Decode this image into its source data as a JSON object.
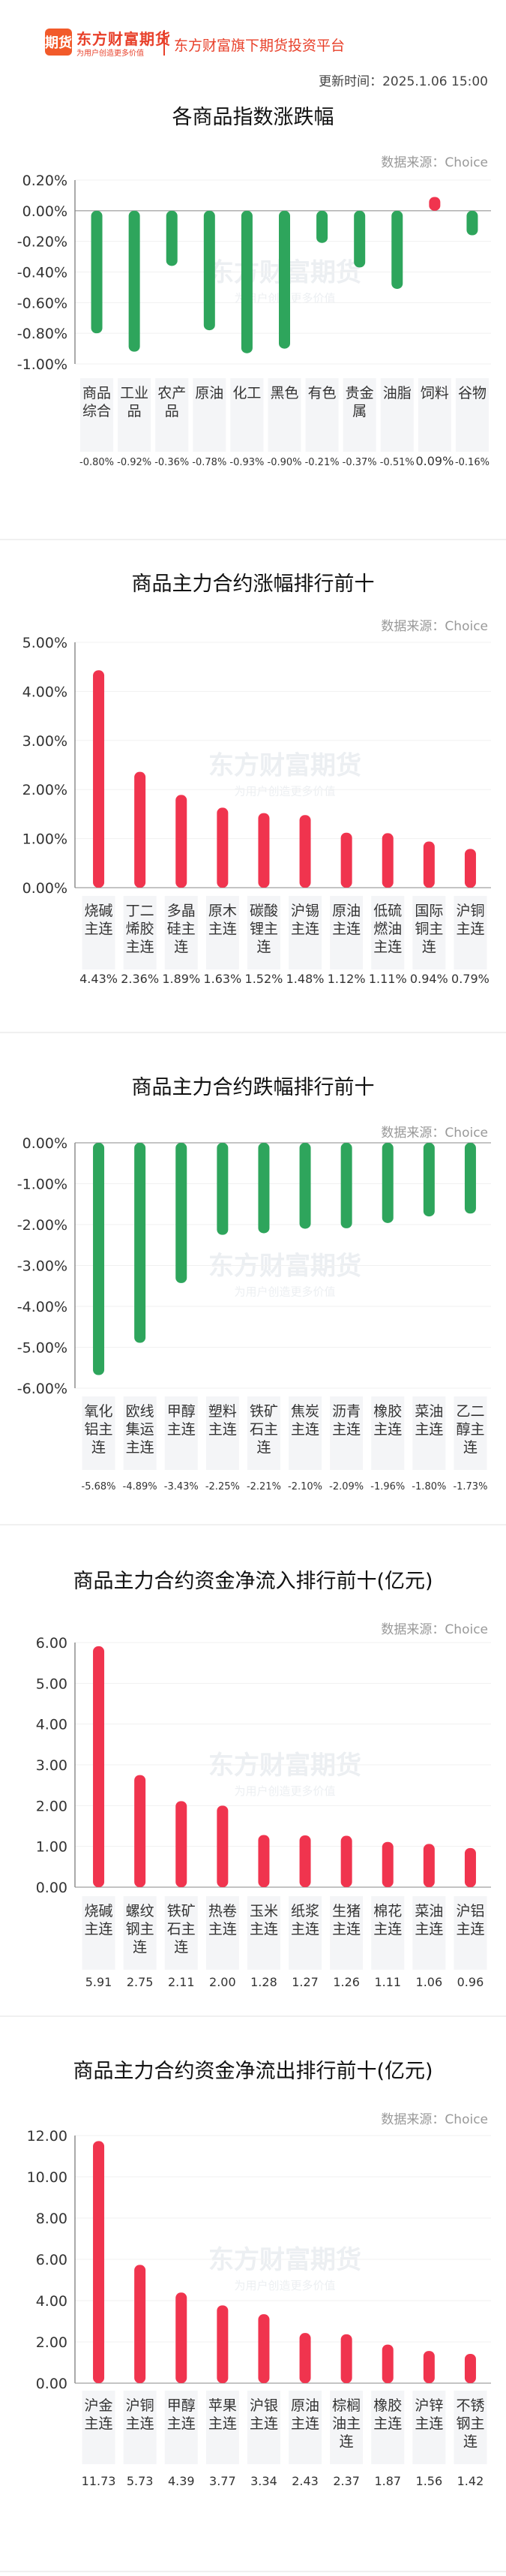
{
  "header": {
    "logo_mark": "期货",
    "logo_name": "东方财富期货",
    "logo_slogan": "为用户创造更多价值",
    "platform": "东方财富旗下期货投资平台",
    "updated": "更新时间：2025.1.06 15:00"
  },
  "colors": {
    "up": "#f0344e",
    "down": "#2ea55c"
  },
  "watermark": {
    "main": "东方财富期货",
    "sub": "为用户创造更多价值"
  },
  "chart_data": [
    {
      "type": "bar",
      "title": "各商品指数涨跌幅",
      "source": "数据来源：Choice",
      "ylim": [
        -1.0,
        0.2
      ],
      "yticks": [
        "0.20%",
        "0.00%",
        "-0.20%",
        "-0.40%",
        "-0.60%",
        "-0.80%",
        "-1.00%"
      ],
      "categories": [
        [
          "商品",
          "综合"
        ],
        [
          "工业",
          "品"
        ],
        [
          "农产",
          "品"
        ],
        [
          "原油"
        ],
        [
          "化工"
        ],
        [
          "黑色"
        ],
        [
          "有色"
        ],
        [
          "贵金",
          "属"
        ],
        [
          "油脂"
        ],
        [
          "饲料"
        ],
        [
          "谷物"
        ]
      ],
      "values": [
        -0.8,
        -0.92,
        -0.36,
        -0.78,
        -0.93,
        -0.9,
        -0.21,
        -0.37,
        -0.51,
        0.09,
        -0.16
      ],
      "labels": [
        "-0.80%",
        "-0.92%",
        "-0.36%",
        "-0.78%",
        "-0.93%",
        "-0.90%",
        "-0.21%",
        "-0.37%",
        "-0.51%",
        "0.09%",
        "-0.16%"
      ]
    },
    {
      "type": "bar",
      "title": "商品主力合约涨幅排行前十",
      "source": "数据来源：Choice",
      "ylim": [
        0,
        5.0
      ],
      "yticks": [
        "5.00%",
        "4.00%",
        "3.00%",
        "2.00%",
        "1.00%",
        "0.00%"
      ],
      "categories": [
        [
          "烧碱",
          "主连"
        ],
        [
          "丁二",
          "烯胶",
          "主连"
        ],
        [
          "多晶",
          "硅主",
          "连"
        ],
        [
          "原木",
          "主连"
        ],
        [
          "碳酸",
          "锂主",
          "连"
        ],
        [
          "沪锡",
          "主连"
        ],
        [
          "原油",
          "主连"
        ],
        [
          "低硫",
          "燃油",
          "主连"
        ],
        [
          "国际",
          "铜主",
          "连"
        ],
        [
          "沪铜",
          "主连"
        ]
      ],
      "values": [
        4.43,
        2.36,
        1.89,
        1.63,
        1.52,
        1.48,
        1.12,
        1.11,
        0.94,
        0.79
      ],
      "labels": [
        "4.43%",
        "2.36%",
        "1.89%",
        "1.63%",
        "1.52%",
        "1.48%",
        "1.12%",
        "1.11%",
        "0.94%",
        "0.79%"
      ]
    },
    {
      "type": "bar",
      "title": "商品主力合约跌幅排行前十",
      "source": "数据来源：Choice",
      "ylim": [
        -6.0,
        0
      ],
      "yticks": [
        "0.00%",
        "-1.00%",
        "-2.00%",
        "-3.00%",
        "-4.00%",
        "-5.00%",
        "-6.00%"
      ],
      "categories": [
        [
          "氧化",
          "铝主",
          "连"
        ],
        [
          "欧线",
          "集运",
          "主连"
        ],
        [
          "甲醇",
          "主连"
        ],
        [
          "塑料",
          "主连"
        ],
        [
          "铁矿",
          "石主",
          "连"
        ],
        [
          "焦炭",
          "主连"
        ],
        [
          "沥青",
          "主连"
        ],
        [
          "橡胶",
          "主连"
        ],
        [
          "菜油",
          "主连"
        ],
        [
          "乙二",
          "醇主",
          "连"
        ]
      ],
      "values": [
        -5.68,
        -4.89,
        -3.43,
        -2.25,
        -2.21,
        -2.1,
        -2.09,
        -1.96,
        -1.8,
        -1.73
      ],
      "labels": [
        "-5.68%",
        "-4.89%",
        "-3.43%",
        "-2.25%",
        "-2.21%",
        "-2.10%",
        "-2.09%",
        "-1.96%",
        "-1.80%",
        "-1.73%"
      ]
    },
    {
      "type": "bar",
      "title": "商品主力合约资金净流入排行前十(亿元)",
      "source": "数据来源：Choice",
      "ylim": [
        0,
        6.0
      ],
      "yticks": [
        "6.00",
        "5.00",
        "4.00",
        "3.00",
        "2.00",
        "1.00",
        "0.00"
      ],
      "categories": [
        [
          "烧碱",
          "主连"
        ],
        [
          "螺纹",
          "钢主",
          "连"
        ],
        [
          "铁矿",
          "石主",
          "连"
        ],
        [
          "热卷",
          "主连"
        ],
        [
          "玉米",
          "主连"
        ],
        [
          "纸浆",
          "主连"
        ],
        [
          "生猪",
          "主连"
        ],
        [
          "棉花",
          "主连"
        ],
        [
          "菜油",
          "主连"
        ],
        [
          "沪铝",
          "主连"
        ]
      ],
      "values": [
        5.91,
        2.75,
        2.11,
        2.0,
        1.28,
        1.27,
        1.26,
        1.11,
        1.06,
        0.96
      ],
      "labels": [
        "5.91",
        "2.75",
        "2.11",
        "2.00",
        "1.28",
        "1.27",
        "1.26",
        "1.11",
        "1.06",
        "0.96"
      ]
    },
    {
      "type": "bar",
      "title": "商品主力合约资金净流出排行前十(亿元)",
      "source": "数据来源：Choice",
      "ylim": [
        0,
        12.0
      ],
      "yticks": [
        "12.00",
        "10.00",
        "8.00",
        "6.00",
        "4.00",
        "2.00",
        "0.00"
      ],
      "categories": [
        [
          "沪金",
          "主连"
        ],
        [
          "沪铜",
          "主连"
        ],
        [
          "甲醇",
          "主连"
        ],
        [
          "苹果",
          "主连"
        ],
        [
          "沪银",
          "主连"
        ],
        [
          "原油",
          "主连"
        ],
        [
          "棕榈",
          "油主",
          "连"
        ],
        [
          "橡胶",
          "主连"
        ],
        [
          "沪锌",
          "主连"
        ],
        [
          "不锈",
          "钢主",
          "连"
        ]
      ],
      "values": [
        11.73,
        5.73,
        4.39,
        3.77,
        3.34,
        2.43,
        2.37,
        1.87,
        1.56,
        1.42
      ],
      "labels": [
        "11.73",
        "5.73",
        "4.39",
        "3.77",
        "3.34",
        "2.43",
        "2.37",
        "1.87",
        "1.56",
        "1.42"
      ]
    }
  ]
}
